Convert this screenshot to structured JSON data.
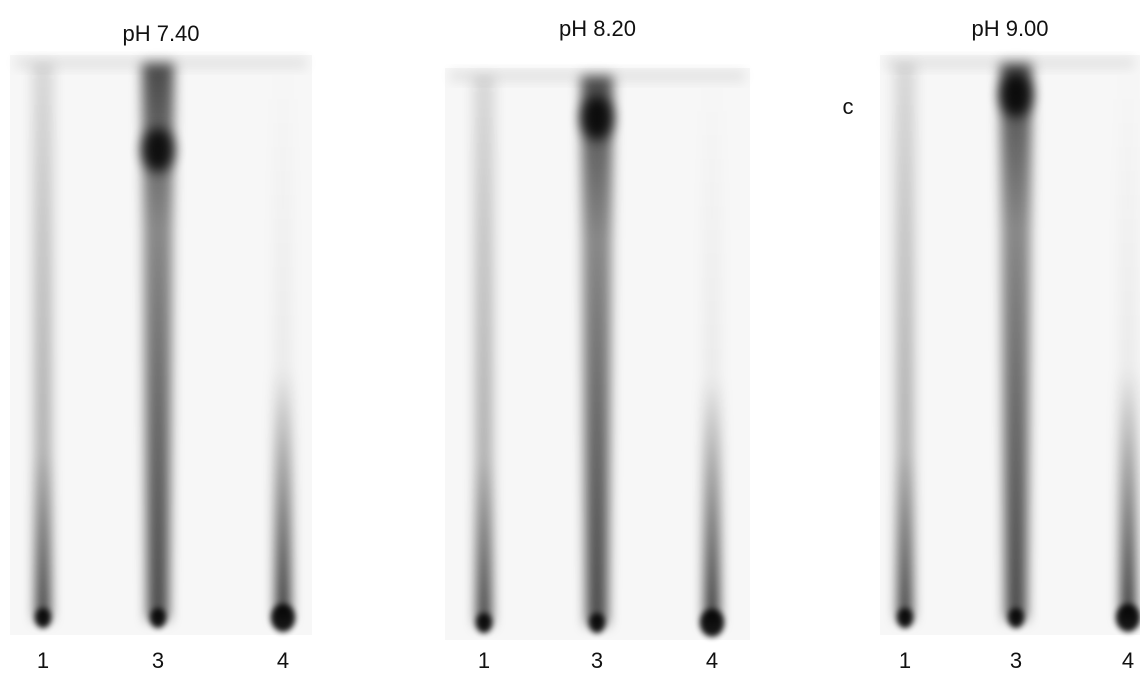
{
  "panels": [
    {
      "title": "pH 7.40",
      "lanes": [
        "1",
        "3",
        "4"
      ]
    },
    {
      "title": "pH 8.20",
      "lanes": [
        "1",
        "3",
        "4"
      ]
    },
    {
      "title": "pH 9.00",
      "lanes": [
        "1",
        "3",
        "4"
      ]
    }
  ],
  "marker": "c"
}
